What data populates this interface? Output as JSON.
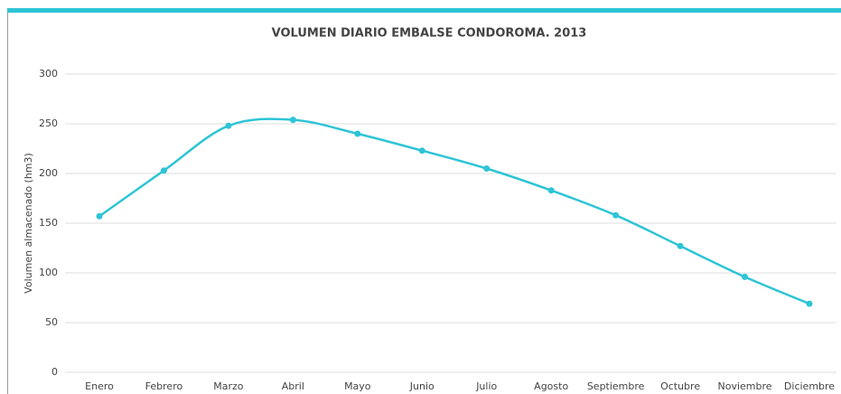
{
  "chart_data": {
    "type": "line",
    "title": "VOLUMEN DIARIO EMBALSE CONDOROMA. 2013",
    "y_label": "Volumen almacenado (hm3)",
    "categories": [
      "Enero",
      "Febrero",
      "Marzo",
      "Abril",
      "Mayo",
      "Junio",
      "Julio",
      "Agosto",
      "Septiembre",
      "Octubre",
      "Noviembre",
      "Diciembre"
    ],
    "series": [
      {
        "name": "Volumen",
        "color": "#2ec4d6",
        "values": [
          157,
          203,
          248,
          254,
          240,
          223,
          205,
          183,
          158,
          127,
          96,
          69
        ]
      }
    ],
    "ylim": [
      0,
      300
    ],
    "yticks": [
      0,
      50,
      100,
      150,
      200,
      250,
      300
    ],
    "grid": true,
    "smooth": true
  }
}
